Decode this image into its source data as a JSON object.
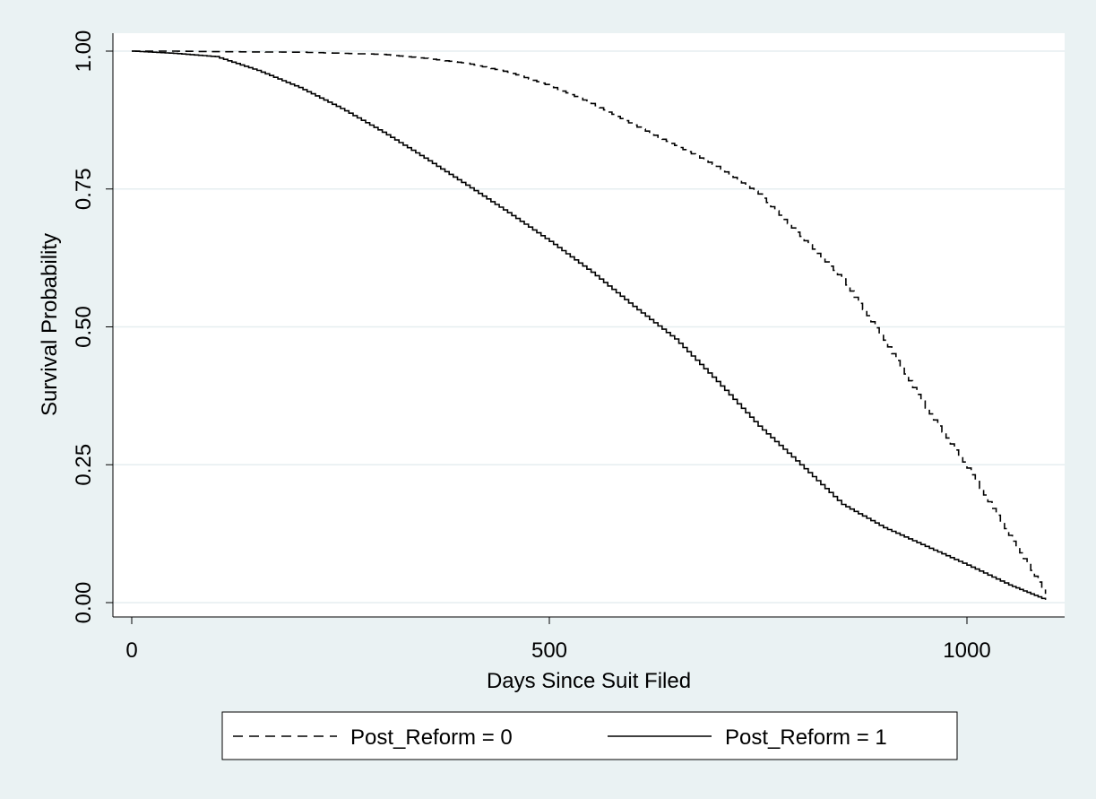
{
  "chart_data": {
    "type": "line",
    "title": "",
    "xlabel": "Days Since Suit Filed",
    "ylabel": "Survival Probability",
    "xlim": [
      0,
      1120
    ],
    "ylim": [
      0,
      1
    ],
    "x_ticks": [
      0,
      500,
      1000
    ],
    "x_tick_labels": [
      "0",
      "500",
      "1000"
    ],
    "y_ticks": [
      0,
      0.25,
      0.5,
      0.75,
      1
    ],
    "y_tick_labels": [
      "0.00",
      "0.25",
      "0.50",
      "0.75",
      "1.00"
    ],
    "grid": "horizontal",
    "legend_position": "bottom",
    "series": [
      {
        "name": "Post_Reform = 0",
        "line_style": "dashed",
        "color": "#000000",
        "x": [
          0,
          50,
          100,
          200,
          300,
          350,
          400,
          450,
          500,
          550,
          600,
          650,
          700,
          750,
          800,
          850,
          900,
          950,
          1000,
          1050,
          1094
        ],
        "y": [
          1.0,
          1.0,
          0.999,
          0.998,
          0.994,
          0.987,
          0.978,
          0.962,
          0.937,
          0.905,
          0.866,
          0.829,
          0.791,
          0.741,
          0.664,
          0.587,
          0.476,
          0.353,
          0.244,
          0.122,
          0.016
        ]
      },
      {
        "name": "Post_Reform = 1",
        "line_style": "solid",
        "color": "#000000",
        "x": [
          0,
          50,
          100,
          150,
          200,
          250,
          300,
          350,
          400,
          450,
          500,
          550,
          600,
          650,
          700,
          750,
          800,
          850,
          900,
          950,
          1000,
          1050,
          1094
        ],
        "y": [
          1.0,
          0.996,
          0.99,
          0.965,
          0.934,
          0.896,
          0.853,
          0.806,
          0.757,
          0.707,
          0.655,
          0.599,
          0.537,
          0.478,
          0.401,
          0.32,
          0.25,
          0.178,
          0.136,
          0.102,
          0.068,
          0.032,
          0.005
        ]
      }
    ]
  }
}
